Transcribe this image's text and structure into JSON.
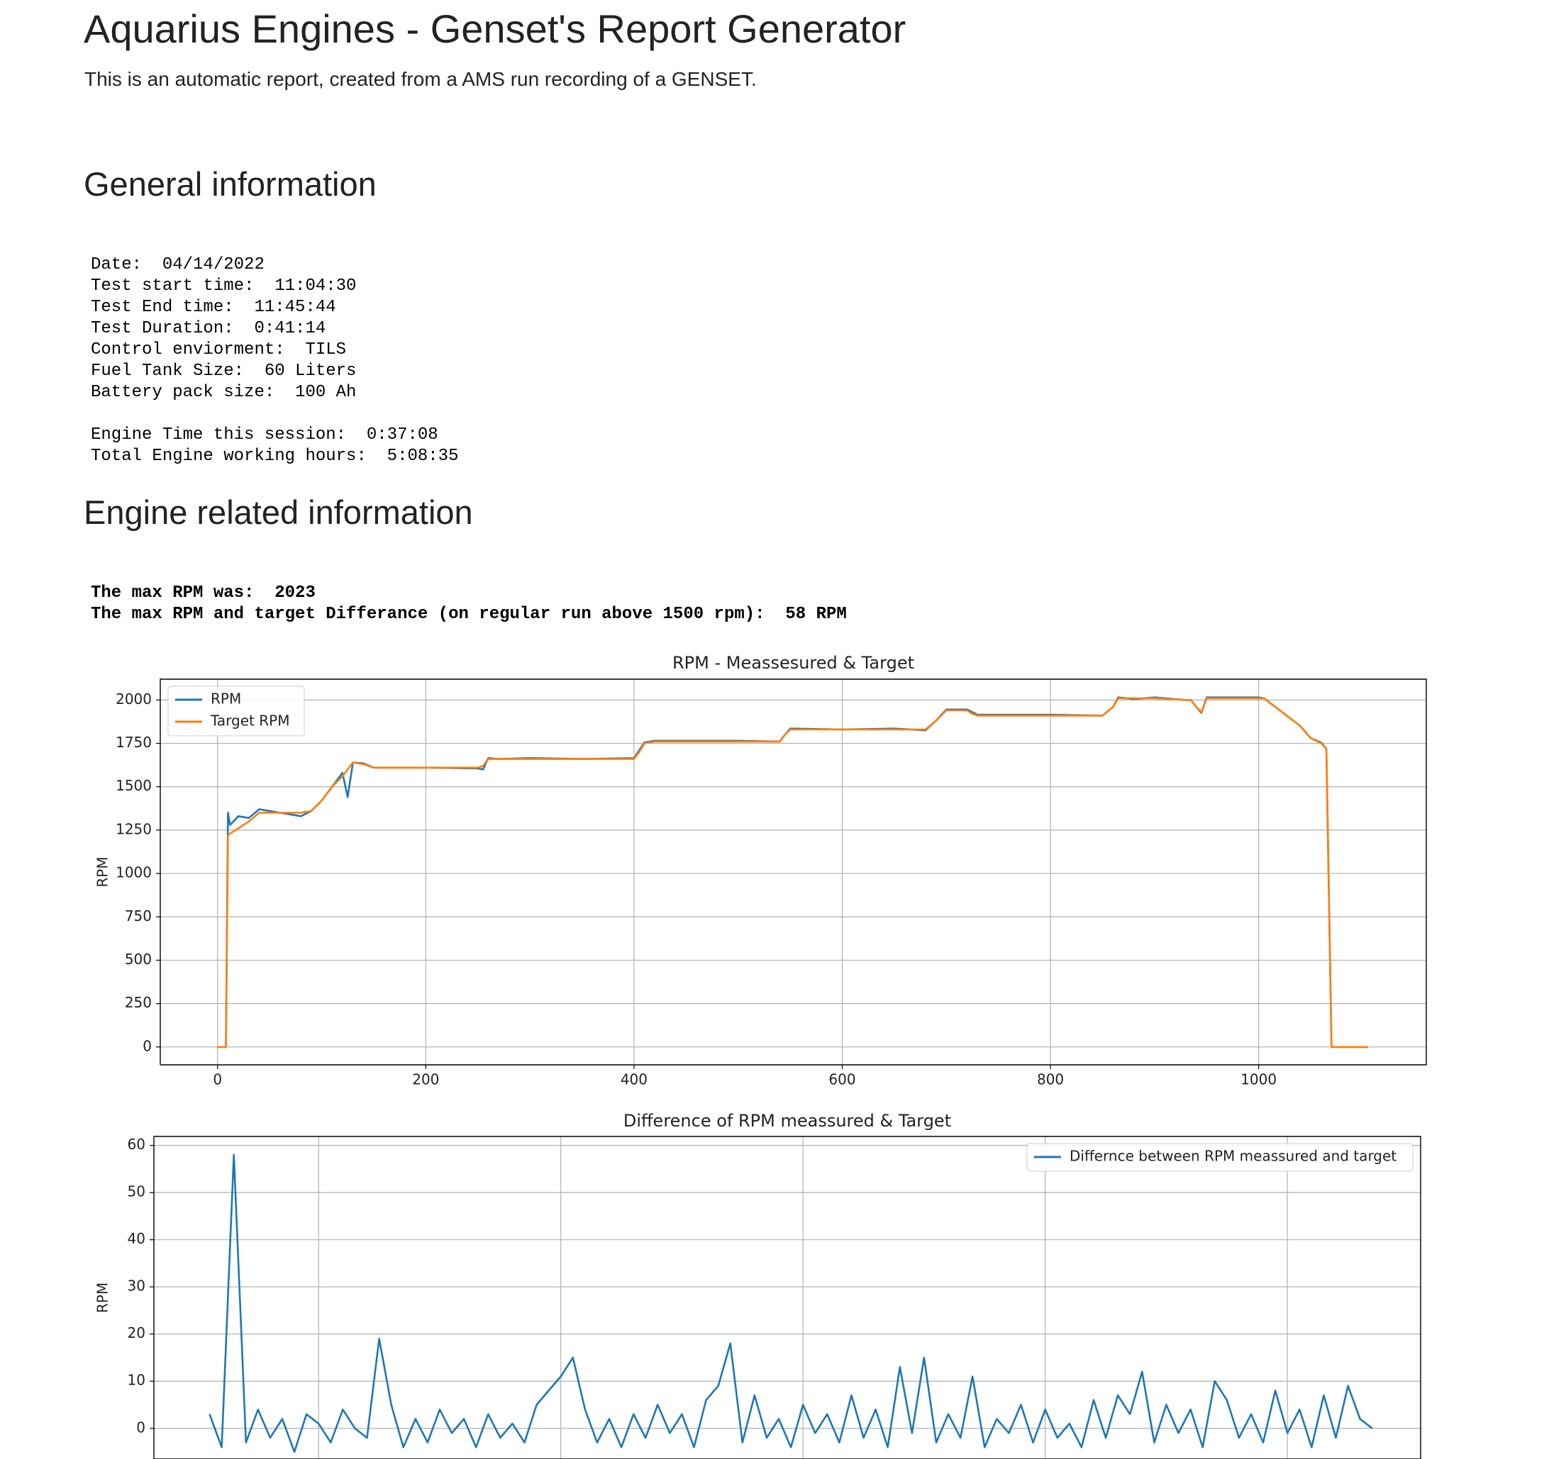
{
  "header": {
    "title": "Aquarius Engines - Genset's Report Generator",
    "subtitle": "This is an automatic report, created from a AMS run recording of a GENSET."
  },
  "general": {
    "heading": "General information",
    "blocks": [
      [
        "Date:  04/14/2022",
        "Test start time:  11:04:30",
        "Test End time:  11:45:44",
        "Test Duration:  0:41:14",
        "Control enviorment:  TILS",
        "Fuel Tank Size:  60 Liters",
        "Battery pack size:  100 Ah"
      ],
      [
        "Engine Time this session:  0:37:08",
        "Total Engine working hours:  5:08:35"
      ]
    ]
  },
  "engine": {
    "heading": "Engine related information",
    "lines": [
      "The max RPM was:  2023",
      "The max RPM and target Differance (on regular run above 1500 rpm):  58 RPM"
    ]
  },
  "chart_data": [
    {
      "type": "line",
      "title": "RPM - Meassesured & Target",
      "y_label": "RPM",
      "x": [
        0,
        8,
        10,
        12,
        20,
        30,
        40,
        60,
        80,
        90,
        100,
        110,
        120,
        125,
        130,
        140,
        150,
        200,
        250,
        255,
        260,
        270,
        300,
        350,
        400,
        405,
        410,
        420,
        500,
        540,
        545,
        550,
        600,
        650,
        680,
        690,
        700,
        720,
        725,
        730,
        800,
        850,
        860,
        865,
        880,
        900,
        930,
        935,
        940,
        945,
        950,
        1000,
        1005,
        1040,
        1050,
        1060,
        1065,
        1070,
        1105
      ],
      "series": [
        {
          "name": "RPM",
          "color": "#1f77b4",
          "values": [
            0,
            0,
            1350,
            1280,
            1330,
            1320,
            1370,
            1350,
            1330,
            1360,
            1420,
            1500,
            1580,
            1440,
            1640,
            1635,
            1610,
            1610,
            1605,
            1600,
            1665,
            1660,
            1665,
            1660,
            1665,
            1710,
            1755,
            1765,
            1765,
            1760,
            1800,
            1835,
            1830,
            1835,
            1825,
            1880,
            1945,
            1945,
            1930,
            1915,
            1915,
            1910,
            1960,
            2015,
            2005,
            2015,
            2000,
            2000,
            1960,
            1925,
            2015,
            2015,
            2010,
            1850,
            1780,
            1755,
            1720,
            0,
            0
          ]
        },
        {
          "name": "Target RPM",
          "color": "#ff7f0e",
          "values": [
            0,
            0,
            1220,
            1230,
            1260,
            1300,
            1350,
            1350,
            1350,
            1360,
            1420,
            1500,
            1560,
            1600,
            1640,
            1630,
            1610,
            1610,
            1610,
            1620,
            1660,
            1660,
            1660,
            1660,
            1660,
            1700,
            1750,
            1760,
            1760,
            1760,
            1800,
            1830,
            1830,
            1830,
            1830,
            1880,
            1940,
            1940,
            1920,
            1910,
            1910,
            1910,
            1960,
            2010,
            2010,
            2010,
            2000,
            2000,
            1960,
            1930,
            2010,
            2010,
            2010,
            1850,
            1780,
            1750,
            1720,
            0,
            0
          ]
        }
      ],
      "xlim": [
        -55,
        1161
      ],
      "ylim": [
        -103,
        2120
      ],
      "xticks": [
        0,
        200,
        400,
        600,
        800,
        1000
      ],
      "yticks": [
        0,
        250,
        500,
        750,
        1000,
        1250,
        1500,
        1750,
        2000
      ],
      "grid": true,
      "legend": "upper-left"
    },
    {
      "type": "line",
      "title": "Difference of RPM meassured & Target",
      "y_label": "RPM",
      "x": [
        110,
        120,
        130,
        140,
        150,
        160,
        170,
        180,
        190,
        200,
        210,
        220,
        230,
        240,
        250,
        260,
        270,
        280,
        290,
        300,
        310,
        320,
        330,
        340,
        350,
        360,
        370,
        380,
        390,
        400,
        410,
        420,
        430,
        440,
        450,
        460,
        470,
        480,
        490,
        500,
        510,
        520,
        530,
        540,
        550,
        560,
        570,
        580,
        590,
        600,
        610,
        620,
        630,
        640,
        650,
        660,
        670,
        680,
        690,
        700,
        710,
        720,
        730,
        740,
        750,
        760,
        770,
        780,
        790,
        800,
        810,
        820,
        830,
        840,
        850,
        860,
        870,
        880,
        890,
        900,
        910,
        920,
        930,
        940,
        950,
        960,
        970,
        980,
        990,
        1000,
        1010,
        1020,
        1030,
        1040,
        1050,
        1060,
        1070
      ],
      "series": [
        {
          "name": "Differnce between RPM meassured and target",
          "color": "#1f77b4",
          "values": [
            3,
            -4,
            58,
            -3,
            4,
            -2,
            2,
            -5,
            3,
            1,
            -3,
            4,
            0,
            -2,
            19,
            5,
            -4,
            2,
            -3,
            4,
            -1,
            2,
            -4,
            3,
            -2,
            1,
            -3,
            5,
            8,
            11,
            15,
            4,
            -3,
            2,
            -4,
            3,
            -2,
            5,
            -1,
            3,
            -4,
            6,
            9,
            18,
            -3,
            7,
            -2,
            2,
            -4,
            5,
            -1,
            3,
            -3,
            7,
            -2,
            4,
            -4,
            13,
            -1,
            15,
            -3,
            3,
            -2,
            11,
            -4,
            2,
            -1,
            5,
            -3,
            4,
            -2,
            1,
            -4,
            6,
            -2,
            7,
            3,
            12,
            -3,
            5,
            -1,
            4,
            -4,
            10,
            6,
            -2,
            3,
            -3,
            8,
            -1,
            4,
            -4,
            7,
            -2,
            9,
            2,
            0
          ]
        }
      ],
      "xlim": [
        64,
        1110
      ],
      "ylim": [
        -6.5,
        61.9
      ],
      "xticks": [
        200,
        400,
        600,
        800,
        1000
      ],
      "yticks": [
        0,
        10,
        20,
        30,
        40,
        50,
        60
      ],
      "grid": true,
      "legend": "upper-right"
    }
  ]
}
